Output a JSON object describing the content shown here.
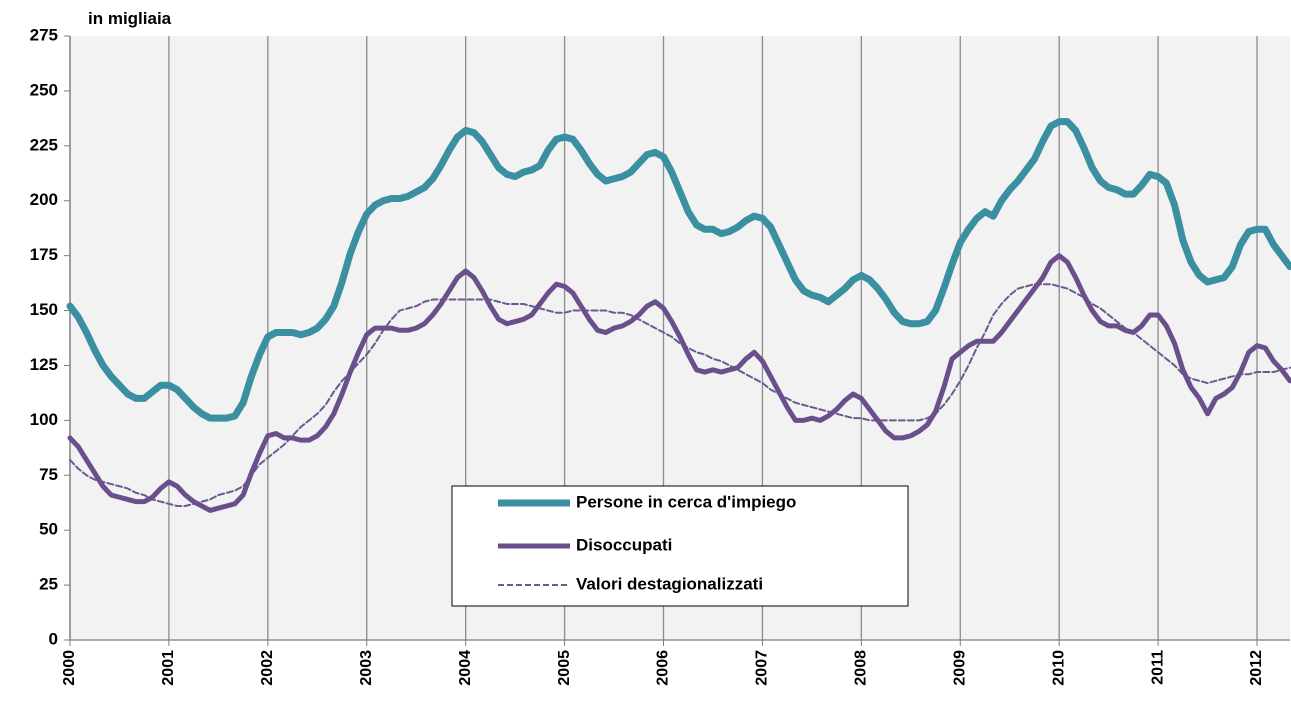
{
  "chart_data": {
    "type": "line",
    "y_label": "in migliaia",
    "categories": [
      "2000",
      null,
      null,
      null,
      null,
      null,
      null,
      null,
      null,
      null,
      null,
      null,
      "2001",
      null,
      null,
      null,
      null,
      null,
      null,
      null,
      null,
      null,
      null,
      null,
      "2002",
      null,
      null,
      null,
      null,
      null,
      null,
      null,
      null,
      null,
      null,
      null,
      "2003",
      null,
      null,
      null,
      null,
      null,
      null,
      null,
      null,
      null,
      null,
      null,
      "2004",
      null,
      null,
      null,
      null,
      null,
      null,
      null,
      null,
      null,
      null,
      null,
      "2005",
      null,
      null,
      null,
      null,
      null,
      null,
      null,
      null,
      null,
      null,
      null,
      "2006",
      null,
      null,
      null,
      null,
      null,
      null,
      null,
      null,
      null,
      null,
      null,
      "2007",
      null,
      null,
      null,
      null,
      null,
      null,
      null,
      null,
      null,
      null,
      null,
      "2008",
      null,
      null,
      null,
      null,
      null,
      null,
      null,
      null,
      null,
      null,
      null,
      "2009",
      null,
      null,
      null,
      null,
      null,
      null,
      null,
      null,
      null,
      null,
      null,
      "2010",
      null,
      null,
      null,
      null,
      null,
      null,
      null,
      null,
      null,
      null,
      null,
      "2011",
      null,
      null,
      null,
      null,
      null,
      null,
      null,
      null,
      null,
      null,
      null,
      "2012",
      null,
      null,
      null,
      null
    ],
    "series": [
      {
        "name": "Persone in cerca d'impiego",
        "color": "#3a8fa0",
        "width": 7,
        "dashed": false,
        "values": [
          152,
          147,
          140,
          132,
          125,
          120,
          116,
          112,
          110,
          110,
          113,
          116,
          116,
          114,
          110,
          106,
          103,
          101,
          101,
          101,
          102,
          108,
          120,
          130,
          138,
          140,
          140,
          140,
          139,
          140,
          142,
          146,
          152,
          163,
          176,
          186,
          194,
          198,
          200,
          201,
          201,
          202,
          204,
          206,
          210,
          216,
          223,
          229,
          232,
          231,
          227,
          221,
          215,
          212,
          211,
          213,
          214,
          216,
          223,
          228,
          229,
          228,
          223,
          217,
          212,
          209,
          210,
          211,
          213,
          217,
          221,
          222,
          220,
          213,
          204,
          195,
          189,
          187,
          187,
          185,
          186,
          188,
          191,
          193,
          192,
          188,
          180,
          172,
          164,
          159,
          157,
          156,
          154,
          157,
          160,
          164,
          166,
          164,
          160,
          155,
          149,
          145,
          144,
          144,
          145,
          150,
          160,
          171,
          181,
          187,
          192,
          195,
          193,
          200,
          205,
          209,
          214,
          219,
          227,
          234,
          236,
          236,
          232,
          224,
          215,
          209,
          206,
          205,
          203,
          203,
          207,
          212,
          211,
          208,
          198,
          182,
          172,
          166,
          163,
          164,
          165,
          170,
          180,
          186,
          187,
          187,
          180,
          175,
          170
        ]
      },
      {
        "name": "Disoccupati",
        "color": "#6b4f8c",
        "width": 5,
        "dashed": false,
        "values": [
          92,
          88,
          82,
          76,
          70,
          66,
          65,
          64,
          63,
          63,
          65,
          69,
          72,
          70,
          66,
          63,
          61,
          59,
          60,
          61,
          62,
          66,
          76,
          85,
          93,
          94,
          92,
          92,
          91,
          91,
          93,
          97,
          103,
          112,
          122,
          131,
          139,
          142,
          142,
          142,
          141,
          141,
          142,
          144,
          148,
          153,
          159,
          165,
          168,
          165,
          159,
          152,
          146,
          144,
          145,
          146,
          148,
          153,
          158,
          162,
          161,
          158,
          152,
          146,
          141,
          140,
          142,
          143,
          145,
          148,
          152,
          154,
          151,
          145,
          138,
          130,
          123,
          122,
          123,
          122,
          123,
          124,
          128,
          131,
          127,
          120,
          113,
          106,
          100,
          100,
          101,
          100,
          102,
          105,
          109,
          112,
          110,
          105,
          100,
          95,
          92,
          92,
          93,
          95,
          98,
          104,
          115,
          128,
          131,
          134,
          136,
          136,
          136,
          140,
          145,
          150,
          155,
          160,
          165,
          172,
          175,
          172,
          165,
          157,
          150,
          145,
          143,
          143,
          141,
          140,
          143,
          148,
          148,
          143,
          135,
          123,
          115,
          110,
          103,
          110,
          112,
          115,
          122,
          131,
          134,
          133,
          127,
          123,
          118
        ]
      },
      {
        "name": "Valori destagionalizzati",
        "color": "#6b5a90",
        "width": 2,
        "dashed": true,
        "values": [
          82,
          78,
          75,
          73,
          72,
          71,
          70,
          69,
          67,
          66,
          64,
          63,
          62,
          61,
          61,
          62,
          63,
          64,
          66,
          67,
          68,
          70,
          75,
          80,
          83,
          86,
          89,
          93,
          97,
          100,
          103,
          107,
          113,
          118,
          122,
          126,
          130,
          135,
          141,
          146,
          150,
          151,
          152,
          154,
          155,
          155,
          155,
          155,
          155,
          155,
          155,
          155,
          154,
          153,
          153,
          153,
          152,
          151,
          150,
          149,
          149,
          150,
          150,
          150,
          150,
          150,
          149,
          149,
          148,
          146,
          144,
          142,
          140,
          138,
          135,
          133,
          131,
          130,
          128,
          127,
          125,
          123,
          121,
          119,
          117,
          114,
          112,
          110,
          108,
          107,
          106,
          105,
          104,
          103,
          102,
          101,
          101,
          100,
          100,
          100,
          100,
          100,
          100,
          100,
          101,
          103,
          107,
          112,
          118,
          125,
          133,
          140,
          148,
          153,
          157,
          160,
          161,
          162,
          162,
          162,
          161,
          160,
          158,
          156,
          153,
          151,
          148,
          145,
          142,
          140,
          137,
          134,
          131,
          128,
          125,
          121,
          119,
          118,
          117,
          118,
          119,
          120,
          121,
          121,
          122,
          122,
          122,
          123,
          124
        ]
      }
    ],
    "ylim": [
      0,
      275
    ],
    "yticks": [
      0,
      25,
      50,
      75,
      100,
      125,
      150,
      175,
      200,
      225,
      250,
      275
    ],
    "grid": true
  }
}
